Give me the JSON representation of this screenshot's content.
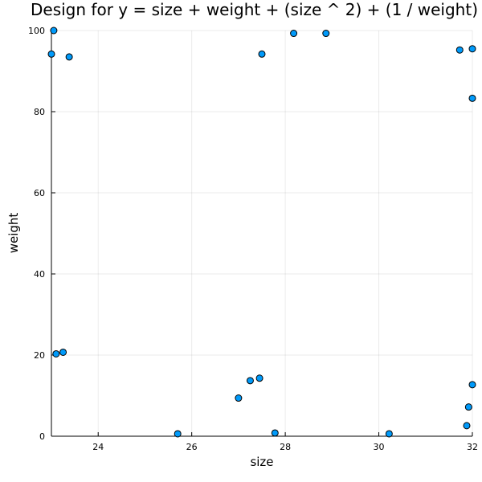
{
  "chart_data": {
    "type": "scatter",
    "title": "Design for y = size + weight + (size ^ 2) + (1 / weight)",
    "xlabel": "size",
    "ylabel": "weight",
    "xlim": [
      23,
      32
    ],
    "ylim": [
      0,
      100
    ],
    "x_ticks": [
      24,
      26,
      28,
      30,
      32
    ],
    "y_ticks": [
      0,
      20,
      40,
      60,
      80,
      100
    ],
    "grid": true,
    "legend": "none",
    "colors": {
      "marker": "#009AFA",
      "marker_edge": "#000000",
      "axis": "#000000"
    },
    "points": [
      {
        "x": 23.0,
        "y": 94.2
      },
      {
        "x": 23.05,
        "y": 100.0
      },
      {
        "x": 23.1,
        "y": 20.3
      },
      {
        "x": 23.25,
        "y": 20.7
      },
      {
        "x": 23.38,
        "y": 93.5
      },
      {
        "x": 25.7,
        "y": 0.6
      },
      {
        "x": 27.0,
        "y": 9.4
      },
      {
        "x": 27.25,
        "y": 13.7
      },
      {
        "x": 27.45,
        "y": 14.3
      },
      {
        "x": 27.5,
        "y": 94.2
      },
      {
        "x": 27.78,
        "y": 0.8
      },
      {
        "x": 28.18,
        "y": 99.3
      },
      {
        "x": 28.87,
        "y": 99.3
      },
      {
        "x": 30.22,
        "y": 0.6
      },
      {
        "x": 31.73,
        "y": 95.2
      },
      {
        "x": 31.88,
        "y": 2.6
      },
      {
        "x": 31.92,
        "y": 7.2
      },
      {
        "x": 32.0,
        "y": 95.5
      },
      {
        "x": 32.0,
        "y": 83.3
      },
      {
        "x": 32.0,
        "y": 12.7
      }
    ]
  }
}
